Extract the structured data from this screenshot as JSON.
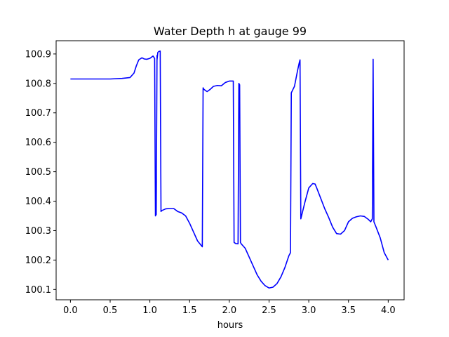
{
  "chart_data": {
    "type": "line",
    "title": "Water Depth h at gauge 99",
    "xlabel": "hours",
    "ylabel": "",
    "xlim": [
      -0.18,
      4.2
    ],
    "ylim": [
      100.065,
      100.945
    ],
    "x_ticks": [
      0.0,
      0.5,
      1.0,
      1.5,
      2.0,
      2.5,
      3.0,
      3.5,
      4.0
    ],
    "x_tick_labels": [
      "0.0",
      "0.5",
      "1.0",
      "1.5",
      "2.0",
      "2.5",
      "3.0",
      "3.5",
      "4.0"
    ],
    "y_ticks": [
      100.1,
      100.2,
      100.3,
      100.4,
      100.5,
      100.6,
      100.7,
      100.8,
      100.9
    ],
    "y_tick_labels": [
      "100.1",
      "100.2",
      "100.3",
      "100.4",
      "100.5",
      "100.6",
      "100.7",
      "100.8",
      "100.9"
    ],
    "grid": false,
    "line_color": "#0000ff",
    "series": [
      {
        "x": [
          0.0,
          0.3,
          0.5,
          0.65,
          0.75,
          0.8,
          0.83,
          0.86,
          0.9,
          0.93,
          0.96,
          1.0,
          1.04,
          1.06,
          1.07,
          1.08,
          1.09,
          1.09,
          1.1,
          1.11,
          1.13,
          1.14,
          1.15,
          1.2,
          1.25,
          1.3,
          1.35,
          1.4,
          1.45,
          1.5,
          1.55,
          1.6,
          1.66,
          1.67,
          1.68,
          1.72,
          1.76,
          1.8,
          1.85,
          1.9,
          1.95,
          2.0,
          2.05,
          2.06,
          2.07,
          2.08,
          2.11,
          2.12,
          2.13,
          2.14,
          2.15,
          2.2,
          2.25,
          2.3,
          2.35,
          2.4,
          2.45,
          2.5,
          2.55,
          2.6,
          2.65,
          2.7,
          2.75,
          2.77,
          2.78,
          2.82,
          2.86,
          2.88,
          2.89,
          2.9,
          2.95,
          3.0,
          3.05,
          3.08,
          3.1,
          3.15,
          3.2,
          3.25,
          3.3,
          3.35,
          3.4,
          3.45,
          3.5,
          3.55,
          3.6,
          3.65,
          3.7,
          3.75,
          3.78,
          3.8,
          3.81,
          3.81,
          3.82,
          3.82,
          3.85,
          3.9,
          3.95,
          4.0
        ],
        "y": [
          100.815,
          100.815,
          100.815,
          100.817,
          100.82,
          100.835,
          100.86,
          100.88,
          100.887,
          100.883,
          100.882,
          100.885,
          100.893,
          100.885,
          100.35,
          100.355,
          100.895,
          100.88,
          100.905,
          100.908,
          100.91,
          100.365,
          100.368,
          100.374,
          100.375,
          100.375,
          100.365,
          100.36,
          100.35,
          100.325,
          100.295,
          100.265,
          100.245,
          100.785,
          100.78,
          100.772,
          100.78,
          100.79,
          100.793,
          100.792,
          100.803,
          100.808,
          100.808,
          100.26,
          100.258,
          100.256,
          100.255,
          100.8,
          100.795,
          100.26,
          100.255,
          100.24,
          100.21,
          100.18,
          100.15,
          100.128,
          100.113,
          100.105,
          100.108,
          100.12,
          100.143,
          100.175,
          100.215,
          100.225,
          100.768,
          100.79,
          100.845,
          100.87,
          100.88,
          100.34,
          100.395,
          100.445,
          100.46,
          100.458,
          100.445,
          100.41,
          100.375,
          100.345,
          100.312,
          100.29,
          100.288,
          100.3,
          100.33,
          100.342,
          100.347,
          100.35,
          100.348,
          100.338,
          100.33,
          100.34,
          100.882,
          100.878,
          100.34,
          100.33,
          100.31,
          100.275,
          100.225,
          100.2
        ]
      }
    ]
  }
}
